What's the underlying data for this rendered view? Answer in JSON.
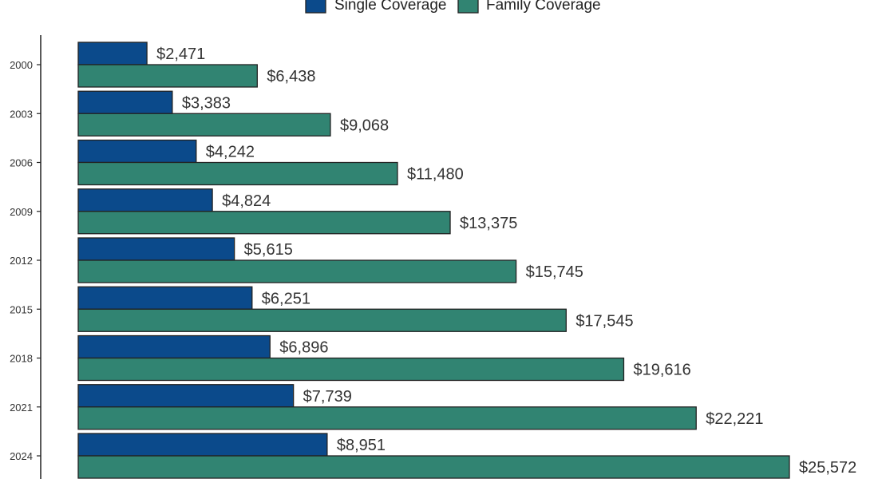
{
  "chart_data": {
    "type": "bar",
    "orientation": "horizontal",
    "categories": [
      "2000",
      "2003",
      "2006",
      "2009",
      "2012",
      "2015",
      "2018",
      "2021",
      "2024"
    ],
    "series": [
      {
        "name": "Single Coverage",
        "color": "#0b4a8b",
        "values": [
          2471,
          3383,
          4242,
          4824,
          5615,
          6251,
          6896,
          7739,
          8951
        ],
        "labels": [
          "$2,471",
          "$3,383",
          "$4,242",
          "$4,824",
          "$5,615",
          "$6,251",
          "$6,896",
          "$7,739",
          "$8,951"
        ]
      },
      {
        "name": "Family Coverage",
        "color": "#318472",
        "values": [
          6438,
          9068,
          11480,
          13375,
          15745,
          17545,
          19616,
          22221,
          25572
        ],
        "labels": [
          "$6,438",
          "$9,068",
          "$11,480",
          "$13,375",
          "$15,745",
          "$17,545",
          "$19,616",
          "$22,221",
          "$25,572"
        ]
      }
    ],
    "title": "",
    "xlabel": "",
    "ylabel": "",
    "xlim": [
      0,
      25572
    ],
    "grid": false,
    "legend_position": "top"
  }
}
